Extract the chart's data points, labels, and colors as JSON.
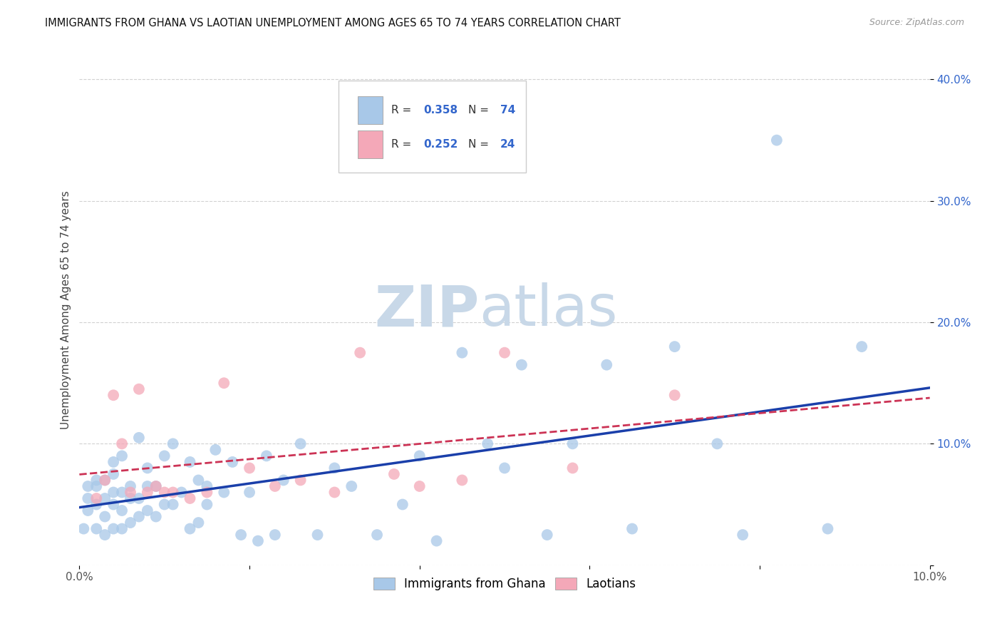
{
  "title": "IMMIGRANTS FROM GHANA VS LAOTIAN UNEMPLOYMENT AMONG AGES 65 TO 74 YEARS CORRELATION CHART",
  "source": "Source: ZipAtlas.com",
  "ylabel": "Unemployment Among Ages 65 to 74 years",
  "legend_label1": "Immigrants from Ghana",
  "legend_label2": "Laotians",
  "r1": 0.358,
  "n1": 74,
  "r2": 0.252,
  "n2": 24,
  "color_ghana": "#a8c8e8",
  "color_laotian": "#f4a8b8",
  "color_line_ghana": "#1a3faa",
  "color_line_laotian": "#cc3355",
  "xlim": [
    0.0,
    0.1
  ],
  "ylim": [
    0.0,
    0.42
  ],
  "ghana_x": [
    0.0005,
    0.001,
    0.001,
    0.001,
    0.002,
    0.002,
    0.002,
    0.002,
    0.003,
    0.003,
    0.003,
    0.003,
    0.004,
    0.004,
    0.004,
    0.004,
    0.004,
    0.005,
    0.005,
    0.005,
    0.005,
    0.006,
    0.006,
    0.006,
    0.007,
    0.007,
    0.007,
    0.008,
    0.008,
    0.008,
    0.009,
    0.009,
    0.01,
    0.01,
    0.011,
    0.011,
    0.012,
    0.013,
    0.013,
    0.014,
    0.014,
    0.015,
    0.015,
    0.016,
    0.017,
    0.018,
    0.019,
    0.02,
    0.021,
    0.022,
    0.023,
    0.024,
    0.026,
    0.028,
    0.03,
    0.032,
    0.035,
    0.038,
    0.04,
    0.042,
    0.045,
    0.048,
    0.05,
    0.052,
    0.055,
    0.058,
    0.062,
    0.065,
    0.07,
    0.075,
    0.078,
    0.082,
    0.088,
    0.092
  ],
  "ghana_y": [
    0.03,
    0.045,
    0.055,
    0.065,
    0.03,
    0.05,
    0.065,
    0.07,
    0.025,
    0.04,
    0.055,
    0.07,
    0.03,
    0.05,
    0.06,
    0.075,
    0.085,
    0.03,
    0.045,
    0.06,
    0.09,
    0.035,
    0.055,
    0.065,
    0.04,
    0.055,
    0.105,
    0.045,
    0.065,
    0.08,
    0.04,
    0.065,
    0.05,
    0.09,
    0.05,
    0.1,
    0.06,
    0.03,
    0.085,
    0.035,
    0.07,
    0.05,
    0.065,
    0.095,
    0.06,
    0.085,
    0.025,
    0.06,
    0.02,
    0.09,
    0.025,
    0.07,
    0.1,
    0.025,
    0.08,
    0.065,
    0.025,
    0.05,
    0.09,
    0.02,
    0.175,
    0.1,
    0.08,
    0.165,
    0.025,
    0.1,
    0.165,
    0.03,
    0.18,
    0.1,
    0.025,
    0.35,
    0.03,
    0.18
  ],
  "laotian_x": [
    0.002,
    0.003,
    0.004,
    0.005,
    0.006,
    0.007,
    0.008,
    0.009,
    0.01,
    0.011,
    0.013,
    0.015,
    0.017,
    0.02,
    0.023,
    0.026,
    0.03,
    0.033,
    0.037,
    0.04,
    0.045,
    0.05,
    0.058,
    0.07
  ],
  "laotian_y": [
    0.055,
    0.07,
    0.14,
    0.1,
    0.06,
    0.145,
    0.06,
    0.065,
    0.06,
    0.06,
    0.055,
    0.06,
    0.15,
    0.08,
    0.065,
    0.07,
    0.06,
    0.175,
    0.075,
    0.065,
    0.07,
    0.175,
    0.08,
    0.14
  ],
  "yticks": [
    0.0,
    0.1,
    0.2,
    0.3,
    0.4
  ],
  "ytick_labels": [
    "",
    "10.0%",
    "20.0%",
    "30.0%",
    "40.0%"
  ],
  "xticks": [
    0.0,
    0.02,
    0.04,
    0.06,
    0.08,
    0.1
  ],
  "xtick_labels": [
    "0.0%",
    "",
    "",
    "",
    "",
    "10.0%"
  ],
  "grid_color": "#cccccc",
  "background_color": "#ffffff",
  "watermark_zip": "ZIP",
  "watermark_atlas": "atlas",
  "watermark_color": "#c8d8e8"
}
